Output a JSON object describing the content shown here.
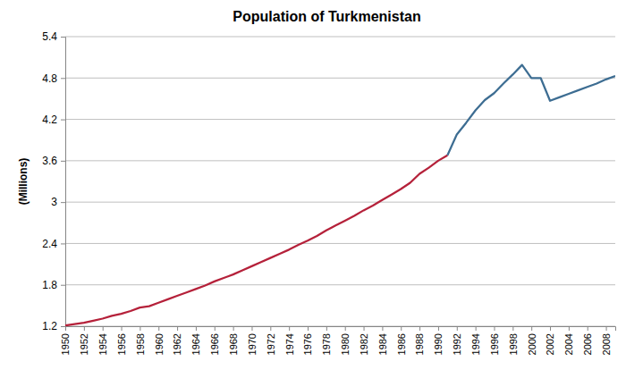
{
  "chart_data": {
    "type": "line",
    "title": "Population of Turkmenistan",
    "y_label": "(Millions)",
    "x": [
      1950,
      1951,
      1952,
      1953,
      1954,
      1955,
      1956,
      1957,
      1958,
      1959,
      1960,
      1961,
      1962,
      1963,
      1964,
      1965,
      1966,
      1967,
      1968,
      1969,
      1970,
      1971,
      1972,
      1973,
      1974,
      1975,
      1976,
      1977,
      1978,
      1979,
      1980,
      1981,
      1982,
      1983,
      1984,
      1985,
      1986,
      1987,
      1988,
      1989,
      1990,
      1991,
      1992,
      1993,
      1994,
      1995,
      1996,
      1997,
      1998,
      1999,
      2000,
      2001,
      2002,
      2003,
      2004,
      2005,
      2006,
      2007,
      2008,
      2009
    ],
    "series": [
      {
        "color": "#b5213a",
        "values": [
          1.21,
          1.23,
          1.25,
          1.28,
          1.31,
          1.35,
          1.38,
          1.42,
          1.47,
          1.49,
          1.54,
          1.59,
          1.64,
          1.69,
          1.74,
          1.79,
          1.85,
          1.9,
          1.95,
          2.01,
          2.07,
          2.13,
          2.19,
          2.25,
          2.31,
          2.38,
          2.44,
          2.51,
          2.59,
          2.66,
          2.73,
          2.8,
          2.88,
          2.95,
          3.03,
          3.11,
          3.19,
          3.28,
          3.41,
          3.5,
          3.6,
          3.68,
          null,
          null,
          null,
          null,
          null,
          null,
          null,
          null,
          null,
          null,
          null,
          null,
          null,
          null,
          null,
          null,
          null,
          null
        ]
      },
      {
        "color": "#3d6d92",
        "values": [
          null,
          null,
          null,
          null,
          null,
          null,
          null,
          null,
          null,
          null,
          null,
          null,
          null,
          null,
          null,
          null,
          null,
          null,
          null,
          null,
          null,
          null,
          null,
          null,
          null,
          null,
          null,
          null,
          null,
          null,
          null,
          null,
          null,
          null,
          null,
          null,
          null,
          null,
          null,
          null,
          null,
          3.68,
          3.98,
          4.15,
          4.33,
          4.48,
          4.58,
          4.72,
          4.85,
          4.99,
          4.8,
          4.8,
          4.47,
          4.52,
          4.57,
          4.62,
          4.67,
          4.72,
          4.78,
          4.83
        ]
      }
    ],
    "xlim": [
      1950,
      2009
    ],
    "xticks": [
      1950,
      1952,
      1954,
      1956,
      1958,
      1960,
      1962,
      1964,
      1966,
      1968,
      1970,
      1972,
      1974,
      1976,
      1978,
      1980,
      1982,
      1984,
      1986,
      1988,
      1990,
      1992,
      1994,
      1996,
      1998,
      2000,
      2002,
      2004,
      2006,
      2008
    ],
    "ylim": [
      1.2,
      5.4
    ],
    "yticks": [
      1.2,
      1.8,
      2.4,
      3,
      3.6,
      4.2,
      4.8,
      5.4
    ],
    "grid": true
  }
}
